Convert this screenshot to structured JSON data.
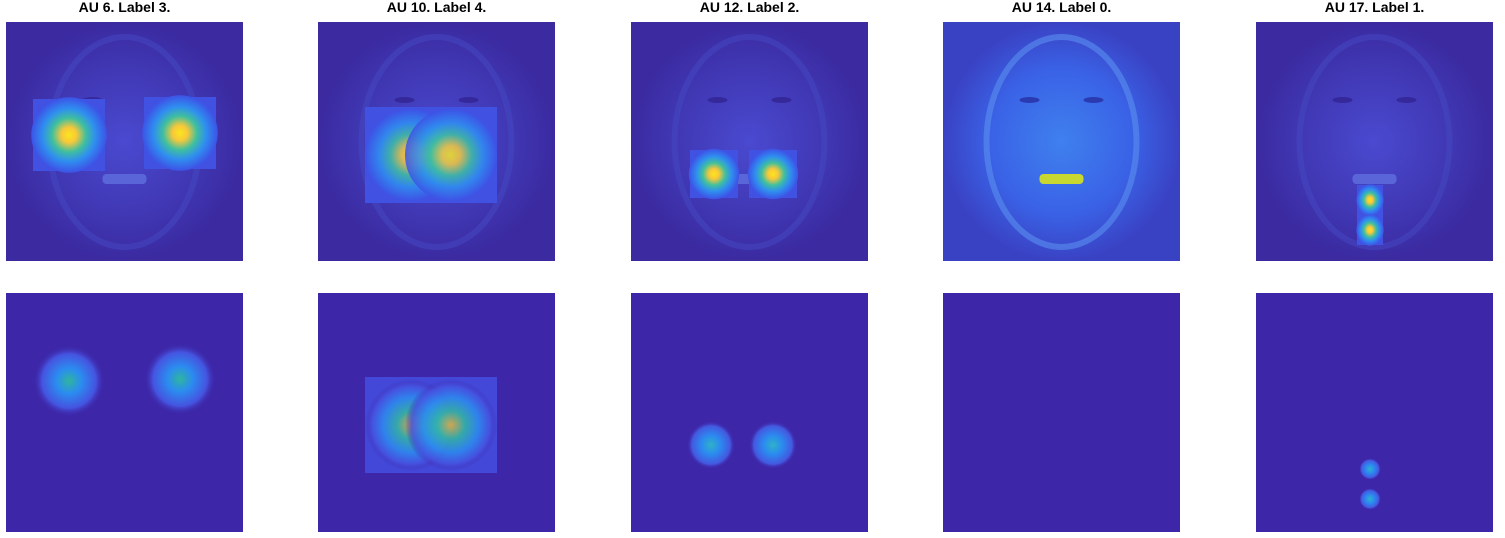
{
  "panels": [
    {
      "title": "AU 6. Label 3."
    },
    {
      "title": "AU 10. Label 4."
    },
    {
      "title": "AU 12. Label 2."
    },
    {
      "title": "AU 14. Label 0."
    },
    {
      "title": "AU 17. Label 1."
    }
  ]
}
